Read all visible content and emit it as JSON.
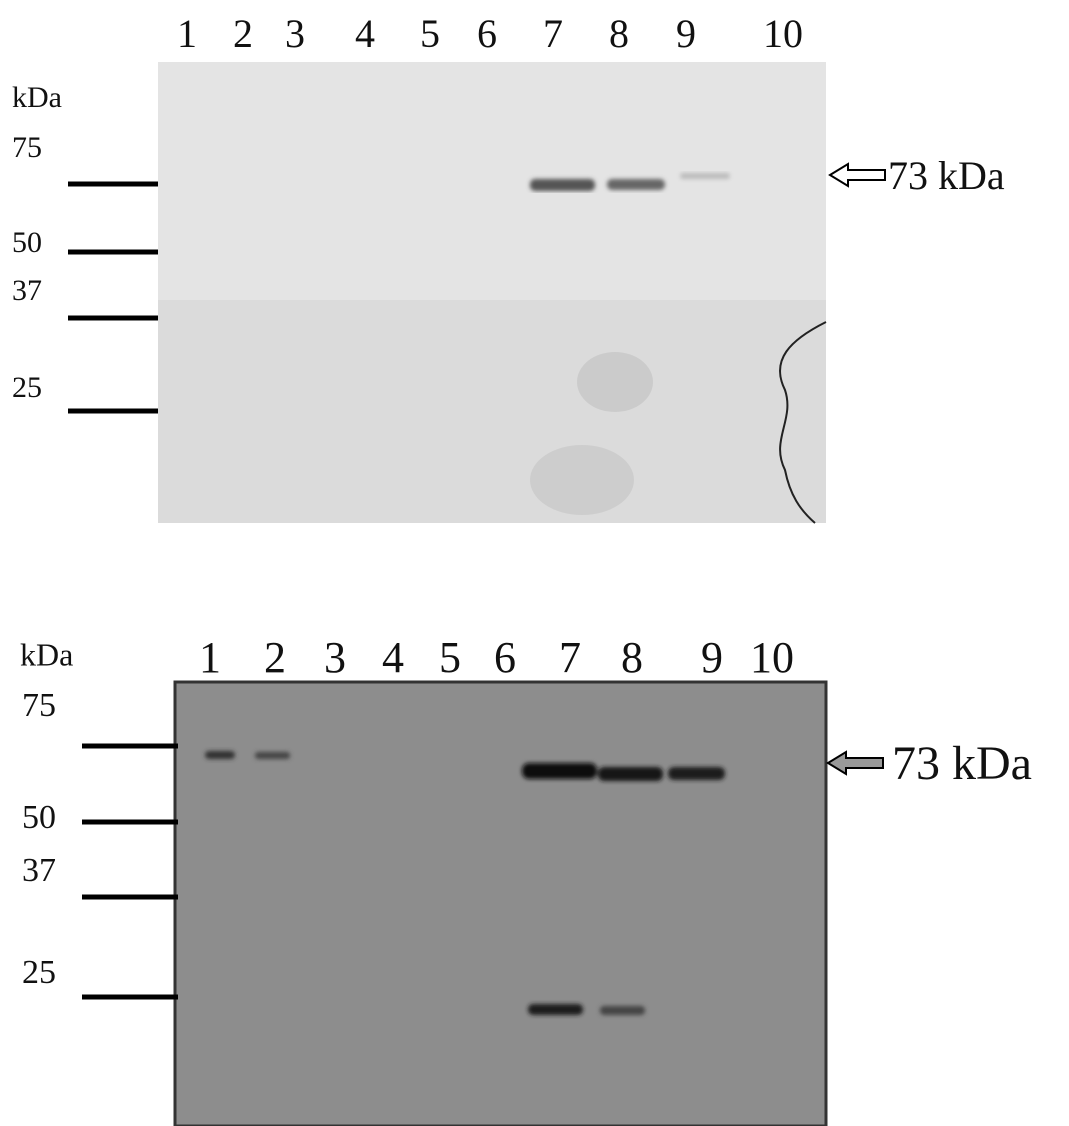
{
  "panels": [
    {
      "lanes": [
        "1",
        "2",
        "3",
        "4",
        "5",
        "6",
        "7",
        "8",
        "9",
        "10"
      ],
      "unit": "kDa",
      "markers": [
        "75",
        "50",
        "37",
        "25"
      ],
      "band_label": "73 kDa"
    },
    {
      "lanes": [
        "1",
        "2",
        "3",
        "4",
        "5",
        "6",
        "7",
        "8",
        "9",
        "10"
      ],
      "unit": "kDa",
      "markers": [
        "75",
        "50",
        "37",
        "25"
      ],
      "band_label": "73 kDa"
    }
  ]
}
